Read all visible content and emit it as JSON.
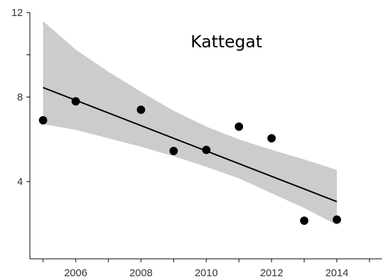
{
  "chart_data": {
    "type": "scatter",
    "title": "Kattegat",
    "xlabel": "",
    "ylabel": "",
    "xlim": [
      2004.7,
      2015.4
    ],
    "ylim": [
      1.7,
      12.0
    ],
    "x_ticks": [
      2006,
      2008,
      2010,
      2012,
      2014
    ],
    "y_ticks": [
      4,
      8,
      12
    ],
    "grid": false,
    "legend": "none",
    "series": [
      {
        "x": [
          2005,
          2006,
          2008,
          2009,
          2010,
          2011,
          2012,
          2013,
          2014
        ],
        "y": [
          6.9,
          7.8,
          7.4,
          5.45,
          5.5,
          6.6,
          6.05,
          2.15,
          2.2
        ]
      }
    ],
    "fit_line": {
      "x": [
        2005,
        2014
      ],
      "y": [
        8.45,
        3.05
      ]
    },
    "confidence_band": {
      "x": [
        2005,
        2006,
        2007,
        2008,
        2009,
        2010,
        2011,
        2012,
        2013,
        2014
      ],
      "lower": [
        6.72,
        6.45,
        6.05,
        5.65,
        5.2,
        4.7,
        4.15,
        3.45,
        2.75,
        1.95
      ],
      "upper": [
        11.6,
        10.25,
        9.2,
        8.25,
        7.35,
        6.6,
        6.0,
        5.5,
        5.05,
        4.55
      ]
    },
    "colors": {
      "points": "#000000",
      "fit_line": "#000000",
      "band": "#cccccc",
      "axes": "#000000"
    }
  }
}
